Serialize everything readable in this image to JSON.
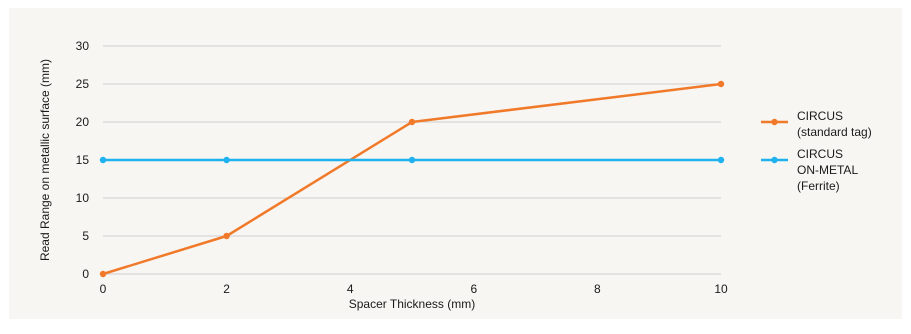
{
  "colors": {
    "panel": "#f7f6f3",
    "grid": "#cfcfcf",
    "series_orange": "#f07a2a",
    "series_blue": "#1fb2ef"
  },
  "chart_data": {
    "type": "line",
    "xlabel": "Spacer Thickness (mm)",
    "ylabel": "Read Range on metallic surface (mm)",
    "x_ticks": [
      "0",
      "2",
      "4",
      "6",
      "8",
      "10"
    ],
    "y_ticks": [
      "0",
      "5",
      "10",
      "15",
      "20",
      "25",
      "30"
    ],
    "xlim": [
      0,
      10
    ],
    "ylim": [
      0,
      30
    ],
    "grid": "horizontal",
    "legend_position": "right",
    "series": [
      {
        "name": "CIRCUS (standard tag)",
        "legend_lines": [
          "CIRCUS",
          "(standard tag)"
        ],
        "color": "#f07a2a",
        "x": [
          0,
          2,
          5,
          10
        ],
        "y": [
          0,
          5,
          20,
          25
        ]
      },
      {
        "name": "CIRCUS ON-METAL (Ferrite)",
        "legend_lines": [
          "CIRCUS",
          "ON-METAL",
          "(Ferrite)"
        ],
        "color": "#1fb2ef",
        "x": [
          0,
          2,
          5,
          10
        ],
        "y": [
          15,
          15,
          15,
          15
        ]
      }
    ]
  }
}
